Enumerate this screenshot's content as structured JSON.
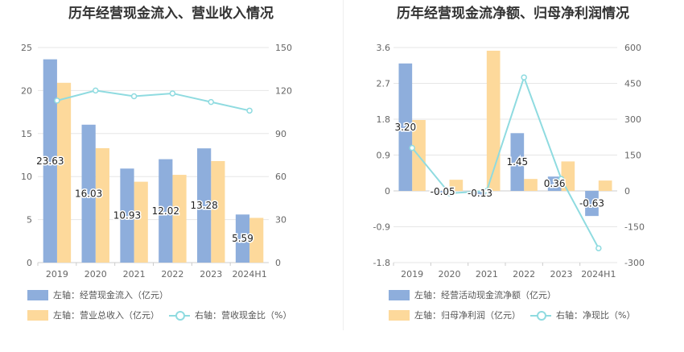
{
  "colors": {
    "bar_primary": "#8eaedc",
    "bar_secondary": "#fdd99b",
    "line": "#8fdbe0",
    "axis_text": "#666666",
    "grid": "#e6e6e6"
  },
  "chart_data": [
    {
      "type": "bar",
      "title": "历年经营现金流入、营业收入情况",
      "categories": [
        "2019",
        "2020",
        "2021",
        "2022",
        "2023",
        "2024H1"
      ],
      "left_axis": {
        "ylim": [
          0,
          25
        ],
        "ticks": [
          "0",
          "5",
          "10",
          "15",
          "20",
          "25"
        ]
      },
      "right_axis": {
        "ylim": [
          0,
          150
        ],
        "ticks": [
          "0",
          "30",
          "60",
          "90",
          "120",
          "150"
        ]
      },
      "series": [
        {
          "name": "左轴：经营现金流入（亿元）",
          "kind": "bar",
          "axis": "left",
          "values": [
            23.63,
            16.03,
            10.93,
            12.02,
            13.28,
            5.59
          ],
          "labels": [
            "23.63",
            "16.03",
            "10.93",
            "12.02",
            "13.28",
            "5.59"
          ]
        },
        {
          "name": "左轴：营业总收入（亿元）",
          "kind": "bar",
          "axis": "left",
          "values": [
            20.9,
            13.3,
            9.4,
            10.2,
            11.8,
            5.2
          ]
        },
        {
          "name": "右轴：营收现金比（%）",
          "kind": "line",
          "axis": "right",
          "values": [
            113,
            120,
            116,
            118,
            112,
            106
          ]
        }
      ],
      "grid": true,
      "legend_position": "bottom"
    },
    {
      "type": "bar",
      "title": "历年经营现金流净额、归母净利润情况",
      "categories": [
        "2019",
        "2020",
        "2021",
        "2022",
        "2023",
        "2024H1"
      ],
      "left_axis": {
        "ylim": [
          -1.8,
          3.6
        ],
        "ticks": [
          "-1.8",
          "-0.9",
          "0",
          "0.9",
          "1.8",
          "2.7",
          "3.6"
        ]
      },
      "right_axis": {
        "ylim": [
          -300,
          600
        ],
        "ticks": [
          "-300",
          "-150",
          "0",
          "150",
          "300",
          "450",
          "600"
        ]
      },
      "series": [
        {
          "name": "左轴：经营活动现金流净额（亿元）",
          "kind": "bar",
          "axis": "left",
          "values": [
            3.2,
            -0.05,
            -0.13,
            1.45,
            0.36,
            -0.63
          ],
          "labels": [
            "3.20",
            "-0.05",
            "-0.13",
            "1.45",
            "0.36",
            "-0.63"
          ]
        },
        {
          "name": "左轴：归母净利润（亿元）",
          "kind": "bar",
          "axis": "left",
          "values": [
            1.78,
            0.28,
            3.52,
            0.3,
            0.74,
            0.26
          ]
        },
        {
          "name": "右轴：净现比（%）",
          "kind": "line",
          "axis": "right",
          "values": [
            180,
            -10,
            0,
            475,
            50,
            -240
          ]
        }
      ],
      "grid": true,
      "legend_position": "bottom"
    }
  ]
}
